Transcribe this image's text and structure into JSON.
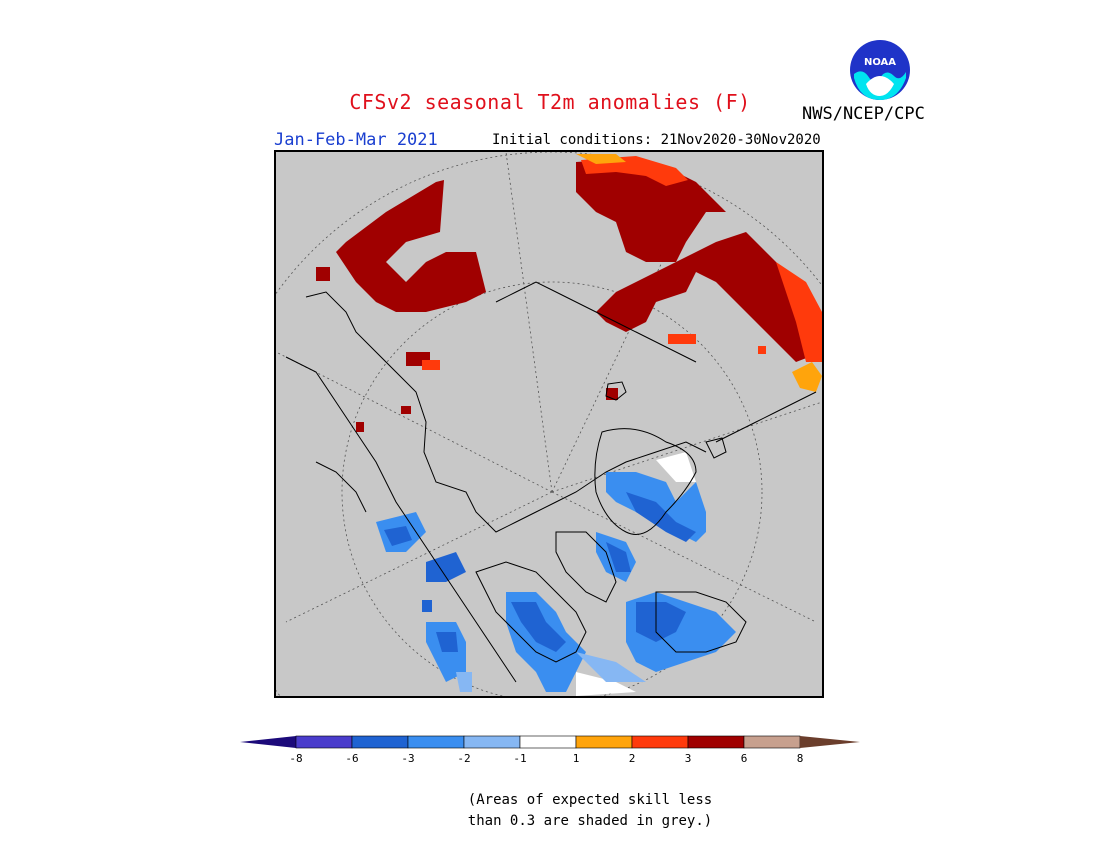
{
  "header": {
    "title": "CFSv2 seasonal T2m anomalies (F)",
    "season": "Jan-Feb-Mar 2021",
    "initial_conditions": "Initial conditions: 21Nov2020-30Nov2020",
    "agency": "NWS/NCEP/CPC",
    "logo_text": "NOAA"
  },
  "legend": {
    "tick_labels": [
      "-8",
      "-6",
      "-3",
      "-2",
      "-1",
      "1",
      "2",
      "3",
      "6",
      "8"
    ],
    "colors": {
      "below_min": "#1c0a7a",
      "bin_m8_m6": "#4a3ccc",
      "bin_m6_m3": "#1f63d2",
      "bin_m3_m2": "#3a8ef0",
      "bin_m2_m1": "#86b7f3",
      "bin_m1_1": "#ffffff",
      "bin_1_2": "#ffa40c",
      "bin_2_3": "#ff3a0c",
      "bin_3_6": "#a00000",
      "bin_6_8": "#c7a08e",
      "above_max": "#6b3e2c"
    }
  },
  "map": {
    "background": "#c8c8c8",
    "projection": "north-polar-stereographic"
  },
  "footnote": {
    "line1": "(Areas of expected skill less",
    "line2": "than 0.3 are shaded in grey.)"
  }
}
